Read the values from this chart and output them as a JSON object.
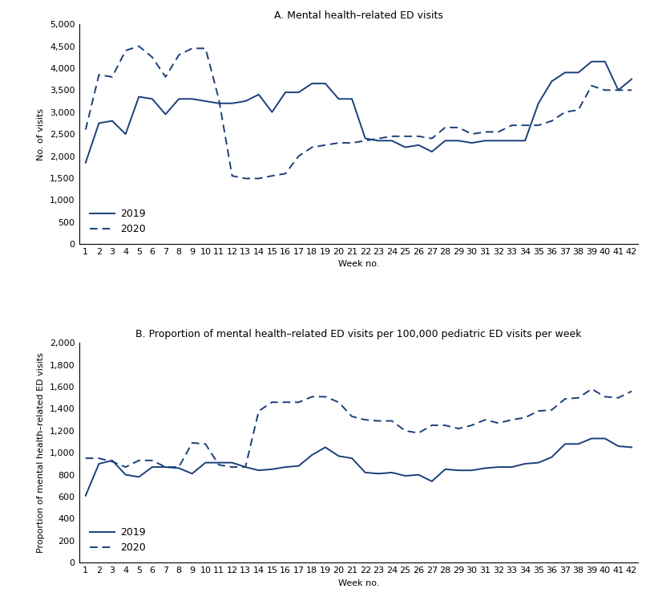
{
  "weeks": [
    1,
    2,
    3,
    4,
    5,
    6,
    7,
    8,
    9,
    10,
    11,
    12,
    13,
    14,
    15,
    16,
    17,
    18,
    19,
    20,
    21,
    22,
    23,
    24,
    25,
    26,
    27,
    28,
    29,
    30,
    31,
    32,
    33,
    34,
    35,
    36,
    37,
    38,
    39,
    40,
    41,
    42
  ],
  "panel_a": {
    "title": "A. Mental health–related ED visits",
    "ylabel": "No. of visits",
    "xlabel": "Week no.",
    "ylim": [
      0,
      5000
    ],
    "yticks": [
      0,
      500,
      1000,
      1500,
      2000,
      2500,
      3000,
      3500,
      4000,
      4500,
      5000
    ],
    "ytick_labels": [
      "0",
      "500",
      "1,000",
      "1,500",
      "2,000",
      "2,500",
      "3,000",
      "3,500",
      "4,000",
      "4,500",
      "5,000"
    ],
    "data_2019": [
      1850,
      2750,
      2800,
      2500,
      3350,
      3300,
      2950,
      3300,
      3300,
      3250,
      3200,
      3200,
      3250,
      3400,
      3000,
      3450,
      3450,
      3650,
      3650,
      3300,
      3300,
      2400,
      2350,
      2350,
      2200,
      2250,
      2100,
      2350,
      2350,
      2300,
      2350,
      2350,
      2350,
      2350,
      3200,
      3700,
      3900,
      3900,
      4150,
      4150,
      3500,
      3750
    ],
    "data_2020": [
      2600,
      3850,
      3800,
      4400,
      4500,
      4250,
      3800,
      4300,
      4450,
      4450,
      3300,
      1550,
      1490,
      1490,
      1550,
      1600,
      2000,
      2200,
      2250,
      2300,
      2300,
      2350,
      2400,
      2450,
      2450,
      2450,
      2400,
      2650,
      2650,
      2500,
      2550,
      2550,
      2700,
      2700,
      2700,
      2800,
      3000,
      3050,
      3600,
      3500,
      3500,
      3500
    ]
  },
  "panel_b": {
    "title": "B. Proportion of mental health–related ED visits per 100,000 pediatric ED visits per week",
    "ylabel": "Proportion of mental health–related ED visits",
    "xlabel": "Week no.",
    "ylim": [
      0,
      2000
    ],
    "yticks": [
      0,
      200,
      400,
      600,
      800,
      1000,
      1200,
      1400,
      1600,
      1800,
      2000
    ],
    "ytick_labels": [
      "0",
      "200",
      "400",
      "600",
      "800",
      "1,000",
      "1,200",
      "1,400",
      "1,600",
      "1,800",
      "2,000"
    ],
    "data_2019": [
      610,
      900,
      930,
      800,
      780,
      870,
      870,
      860,
      810,
      910,
      910,
      910,
      870,
      840,
      850,
      870,
      880,
      980,
      1050,
      970,
      950,
      820,
      810,
      820,
      790,
      800,
      740,
      850,
      840,
      840,
      860,
      870,
      870,
      900,
      910,
      960,
      1080,
      1080,
      1130,
      1130,
      1060,
      1050
    ],
    "data_2020": [
      950,
      950,
      920,
      870,
      930,
      930,
      870,
      870,
      1090,
      1080,
      890,
      870,
      870,
      1380,
      1460,
      1460,
      1460,
      1510,
      1510,
      1460,
      1330,
      1300,
      1290,
      1290,
      1200,
      1180,
      1250,
      1250,
      1220,
      1250,
      1300,
      1270,
      1300,
      1320,
      1380,
      1390,
      1490,
      1500,
      1580,
      1510,
      1500,
      1560
    ]
  },
  "line_color": "#1a3f7a",
  "legend_2019": "2019",
  "legend_2020": "2020",
  "title_fontsize": 9,
  "label_fontsize": 8,
  "tick_fontsize": 8,
  "legend_fontsize": 9
}
